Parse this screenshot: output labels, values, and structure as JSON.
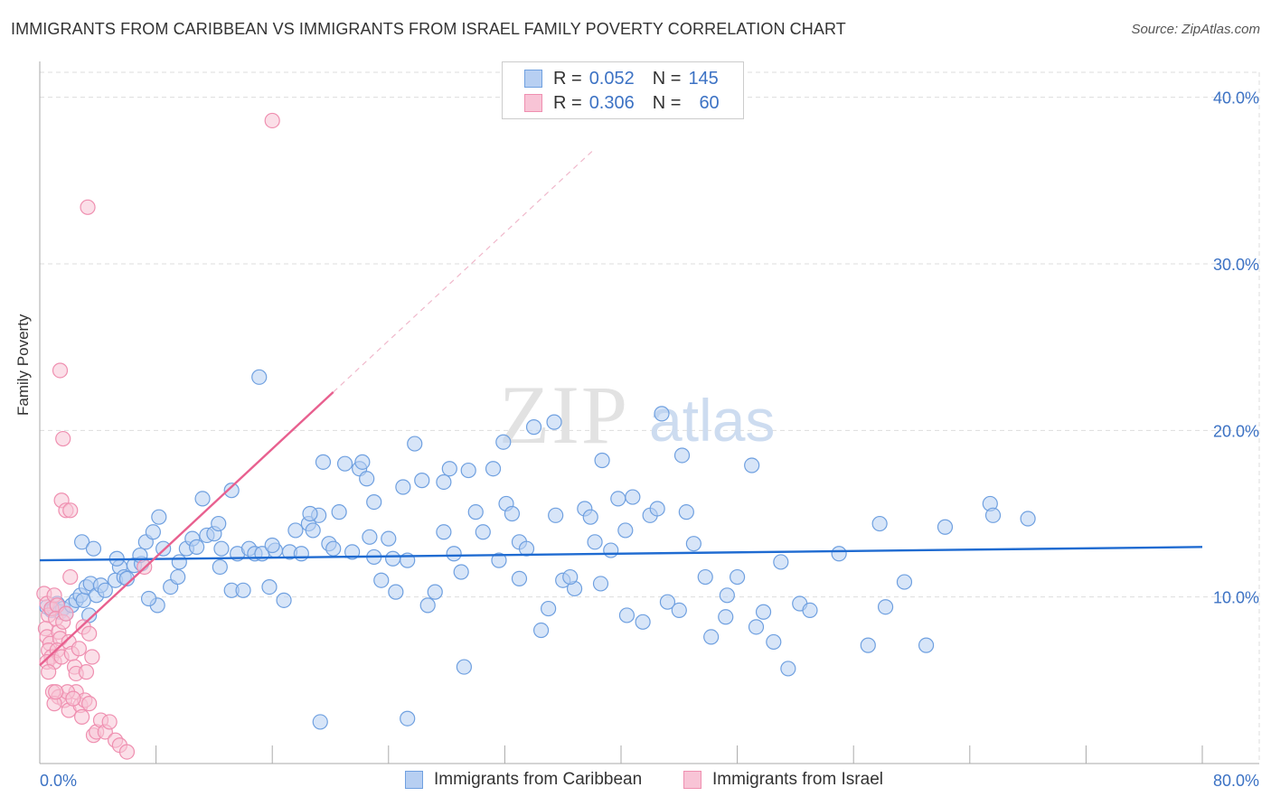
{
  "title": "IMMIGRANTS FROM CARIBBEAN VS IMMIGRANTS FROM ISRAEL FAMILY POVERTY CORRELATION CHART",
  "source": "Source: ZipAtlas.com",
  "watermark": {
    "zip": "ZIP",
    "atlas": "atlas"
  },
  "colors": {
    "blue": "#6fa0e0",
    "blue_fill": "#b7cff2",
    "blue_line": "#1f6bd1",
    "pink": "#ef8fb0",
    "pink_fill": "#f8c4d6",
    "pink_line": "#e8608f",
    "axis_label": "#3c72c4",
    "grid": "#dddddd"
  },
  "legend": {
    "caribbean": {
      "r_label": "R =",
      "r_value": "0.052",
      "n_label": "N =",
      "n_value": "145"
    },
    "israel": {
      "r_label": "R =",
      "r_value": "0.306",
      "n_label": "N =",
      "n_value": "60"
    }
  },
  "chart_data": {
    "type": "scatter",
    "title": "IMMIGRANTS FROM CARIBBEAN VS IMMIGRANTS FROM ISRAEL FAMILY POVERTY CORRELATION CHART",
    "xlabel": "",
    "ylabel": "Family Poverty",
    "xlim": [
      0,
      80
    ],
    "ylim": [
      0,
      41.5
    ],
    "x_tick_labels": [
      "0.0%",
      "80.0%"
    ],
    "y_ticks": [
      10,
      20,
      30,
      40
    ],
    "y_tick_labels": [
      "10.0%",
      "20.0%",
      "30.0%",
      "40.0%"
    ],
    "grid": true,
    "series": [
      {
        "name": "Immigrants from Caribbean",
        "color": "blue",
        "R": 0.052,
        "N": 145,
        "trend": {
          "x0": 0,
          "y0": 12.2,
          "x1": 80,
          "y1": 13.0,
          "dashed_to_x": null
        },
        "points": [
          [
            0.5,
            9.4
          ],
          [
            0.8,
            9.2
          ],
          [
            1.0,
            9.3
          ],
          [
            1.2,
            9.6
          ],
          [
            1.4,
            9.1
          ],
          [
            1.6,
            9.3
          ],
          [
            1.8,
            9.0
          ],
          [
            2.2,
            9.5
          ],
          [
            2.5,
            9.8
          ],
          [
            2.8,
            10.1
          ],
          [
            3.0,
            9.8
          ],
          [
            3.2,
            10.6
          ],
          [
            3.5,
            10.8
          ],
          [
            3.9,
            10.1
          ],
          [
            4.2,
            10.7
          ],
          [
            4.5,
            10.4
          ],
          [
            2.9,
            13.3
          ],
          [
            3.7,
            12.9
          ],
          [
            5.2,
            11.0
          ],
          [
            5.5,
            11.8
          ],
          [
            5.8,
            11.2
          ],
          [
            6.0,
            11.1
          ],
          [
            6.5,
            11.9
          ],
          [
            7.0,
            12.0
          ],
          [
            7.3,
            13.3
          ],
          [
            7.8,
            13.9
          ],
          [
            8.2,
            14.8
          ],
          [
            8.5,
            12.9
          ],
          [
            9.0,
            10.6
          ],
          [
            9.6,
            12.1
          ],
          [
            10.1,
            12.9
          ],
          [
            10.5,
            13.5
          ],
          [
            10.8,
            13.0
          ],
          [
            11.2,
            15.9
          ],
          [
            11.5,
            13.7
          ],
          [
            12.0,
            13.8
          ],
          [
            12.3,
            14.4
          ],
          [
            12.5,
            12.9
          ],
          [
            13.2,
            10.4
          ],
          [
            13.6,
            12.6
          ],
          [
            14.0,
            10.4
          ],
          [
            14.4,
            12.9
          ],
          [
            14.8,
            12.6
          ],
          [
            15.3,
            12.6
          ],
          [
            15.8,
            10.6
          ],
          [
            16.2,
            12.8
          ],
          [
            16.8,
            9.8
          ],
          [
            17.2,
            12.7
          ],
          [
            17.6,
            14.0
          ],
          [
            18.0,
            12.6
          ],
          [
            18.5,
            14.4
          ],
          [
            18.8,
            14.0
          ],
          [
            19.2,
            14.9
          ],
          [
            19.5,
            18.1
          ],
          [
            19.9,
            13.2
          ],
          [
            20.2,
            12.9
          ],
          [
            20.6,
            15.1
          ],
          [
            21.0,
            18.0
          ],
          [
            21.5,
            12.7
          ],
          [
            22.0,
            17.7
          ],
          [
            22.5,
            17.1
          ],
          [
            23.0,
            12.4
          ],
          [
            23.5,
            11.0
          ],
          [
            24.0,
            13.5
          ],
          [
            24.5,
            10.3
          ],
          [
            25.0,
            16.6
          ],
          [
            25.3,
            12.2
          ],
          [
            25.8,
            19.2
          ],
          [
            26.3,
            17.0
          ],
          [
            26.7,
            9.5
          ],
          [
            27.2,
            10.3
          ],
          [
            27.8,
            13.9
          ],
          [
            28.2,
            17.7
          ],
          [
            28.5,
            12.6
          ],
          [
            29.0,
            11.5
          ],
          [
            29.5,
            17.6
          ],
          [
            30.0,
            15.1
          ],
          [
            30.5,
            13.9
          ],
          [
            31.2,
            17.7
          ],
          [
            31.6,
            12.2
          ],
          [
            32.1,
            15.6
          ],
          [
            32.5,
            15.0
          ],
          [
            33.0,
            13.3
          ],
          [
            33.5,
            12.9
          ],
          [
            34.0,
            20.2
          ],
          [
            34.5,
            8.0
          ],
          [
            35.0,
            9.3
          ],
          [
            35.5,
            14.9
          ],
          [
            36.0,
            11.0
          ],
          [
            36.8,
            10.5
          ],
          [
            37.5,
            15.3
          ],
          [
            37.9,
            14.8
          ],
          [
            38.2,
            13.3
          ],
          [
            38.6,
            10.8
          ],
          [
            39.3,
            12.8
          ],
          [
            39.8,
            15.9
          ],
          [
            40.3,
            14.0
          ],
          [
            40.8,
            16.0
          ],
          [
            41.5,
            8.5
          ],
          [
            42.0,
            14.9
          ],
          [
            42.5,
            15.3
          ],
          [
            42.8,
            21.0
          ],
          [
            43.2,
            9.7
          ],
          [
            44.0,
            9.2
          ],
          [
            44.5,
            15.1
          ],
          [
            45.0,
            13.2
          ],
          [
            45.8,
            11.2
          ],
          [
            46.2,
            7.6
          ],
          [
            47.3,
            10.1
          ],
          [
            48.0,
            11.2
          ],
          [
            49.0,
            17.9
          ],
          [
            49.3,
            8.2
          ],
          [
            49.8,
            9.1
          ],
          [
            50.5,
            7.3
          ],
          [
            51.0,
            12.1
          ],
          [
            51.5,
            5.7
          ],
          [
            52.3,
            9.6
          ],
          [
            53.0,
            9.2
          ],
          [
            55.0,
            12.6
          ],
          [
            57.0,
            7.1
          ],
          [
            57.8,
            14.4
          ],
          [
            58.2,
            9.4
          ],
          [
            59.5,
            10.9
          ],
          [
            61.0,
            7.1
          ],
          [
            62.3,
            14.2
          ],
          [
            65.4,
            15.6
          ],
          [
            65.6,
            14.9
          ],
          [
            68.0,
            14.7
          ],
          [
            35.4,
            20.5
          ],
          [
            38.7,
            18.2
          ],
          [
            31.9,
            19.3
          ],
          [
            22.2,
            18.1
          ],
          [
            15.1,
            23.2
          ],
          [
            13.2,
            16.4
          ],
          [
            27.8,
            16.9
          ],
          [
            18.6,
            15.0
          ],
          [
            9.5,
            11.2
          ],
          [
            8.1,
            9.5
          ],
          [
            5.3,
            12.3
          ],
          [
            6.9,
            12.5
          ],
          [
            23.0,
            15.7
          ],
          [
            36.5,
            11.2
          ],
          [
            24.3,
            12.3
          ],
          [
            47.2,
            8.8
          ],
          [
            19.3,
            2.5
          ],
          [
            25.3,
            2.7
          ],
          [
            29.2,
            5.8
          ],
          [
            44.2,
            18.5
          ],
          [
            12.4,
            11.8
          ],
          [
            7.5,
            9.9
          ],
          [
            3.4,
            8.9
          ],
          [
            16.0,
            13.1
          ],
          [
            22.7,
            13.6
          ],
          [
            33.0,
            11.1
          ],
          [
            40.4,
            8.9
          ]
        ]
      },
      {
        "name": "Immigrants from Israel",
        "color": "pink",
        "R": 0.306,
        "N": 60,
        "trend": {
          "x0": 0,
          "y0": 5.9,
          "x1": 20.2,
          "y1": 22.3,
          "dashed_to_x": 38.0
        },
        "points": [
          [
            0.3,
            10.2
          ],
          [
            0.5,
            9.6
          ],
          [
            0.6,
            8.9
          ],
          [
            0.8,
            9.3
          ],
          [
            0.4,
            8.1
          ],
          [
            0.5,
            7.6
          ],
          [
            0.7,
            7.2
          ],
          [
            0.6,
            6.8
          ],
          [
            0.8,
            6.4
          ],
          [
            0.5,
            6.1
          ],
          [
            1.0,
            10.1
          ],
          [
            1.2,
            9.5
          ],
          [
            1.1,
            8.7
          ],
          [
            1.3,
            7.9
          ],
          [
            1.4,
            7.5
          ],
          [
            1.2,
            6.8
          ],
          [
            1.0,
            6.1
          ],
          [
            1.5,
            6.4
          ],
          [
            1.6,
            8.5
          ],
          [
            1.8,
            9.0
          ],
          [
            2.0,
            7.3
          ],
          [
            2.2,
            6.6
          ],
          [
            2.4,
            5.8
          ],
          [
            2.5,
            5.4
          ],
          [
            2.7,
            6.9
          ],
          [
            3.0,
            8.2
          ],
          [
            3.2,
            5.5
          ],
          [
            3.4,
            7.8
          ],
          [
            3.6,
            6.4
          ],
          [
            2.1,
            11.2
          ],
          [
            1.5,
            15.8
          ],
          [
            1.8,
            15.2
          ],
          [
            2.1,
            15.2
          ],
          [
            1.6,
            19.5
          ],
          [
            1.4,
            23.6
          ],
          [
            3.3,
            33.4
          ],
          [
            16.0,
            38.6
          ],
          [
            7.2,
            11.8
          ],
          [
            0.9,
            4.3
          ],
          [
            1.3,
            4.0
          ],
          [
            1.7,
            3.8
          ],
          [
            2.0,
            3.2
          ],
          [
            2.5,
            4.3
          ],
          [
            2.8,
            3.5
          ],
          [
            3.1,
            3.8
          ],
          [
            3.4,
            3.6
          ],
          [
            3.7,
            1.7
          ],
          [
            3.9,
            1.9
          ],
          [
            4.2,
            2.6
          ],
          [
            4.5,
            1.9
          ],
          [
            4.8,
            2.5
          ],
          [
            5.2,
            1.4
          ],
          [
            5.5,
            1.1
          ],
          [
            6.0,
            0.7
          ],
          [
            0.6,
            5.5
          ],
          [
            1.0,
            3.6
          ],
          [
            1.9,
            4.3
          ],
          [
            2.3,
            3.9
          ],
          [
            2.9,
            2.8
          ],
          [
            1.1,
            4.3
          ]
        ]
      }
    ]
  },
  "bottom_legend": {
    "caribbean": "Immigrants from Caribbean",
    "israel": "Immigrants from Israel"
  }
}
